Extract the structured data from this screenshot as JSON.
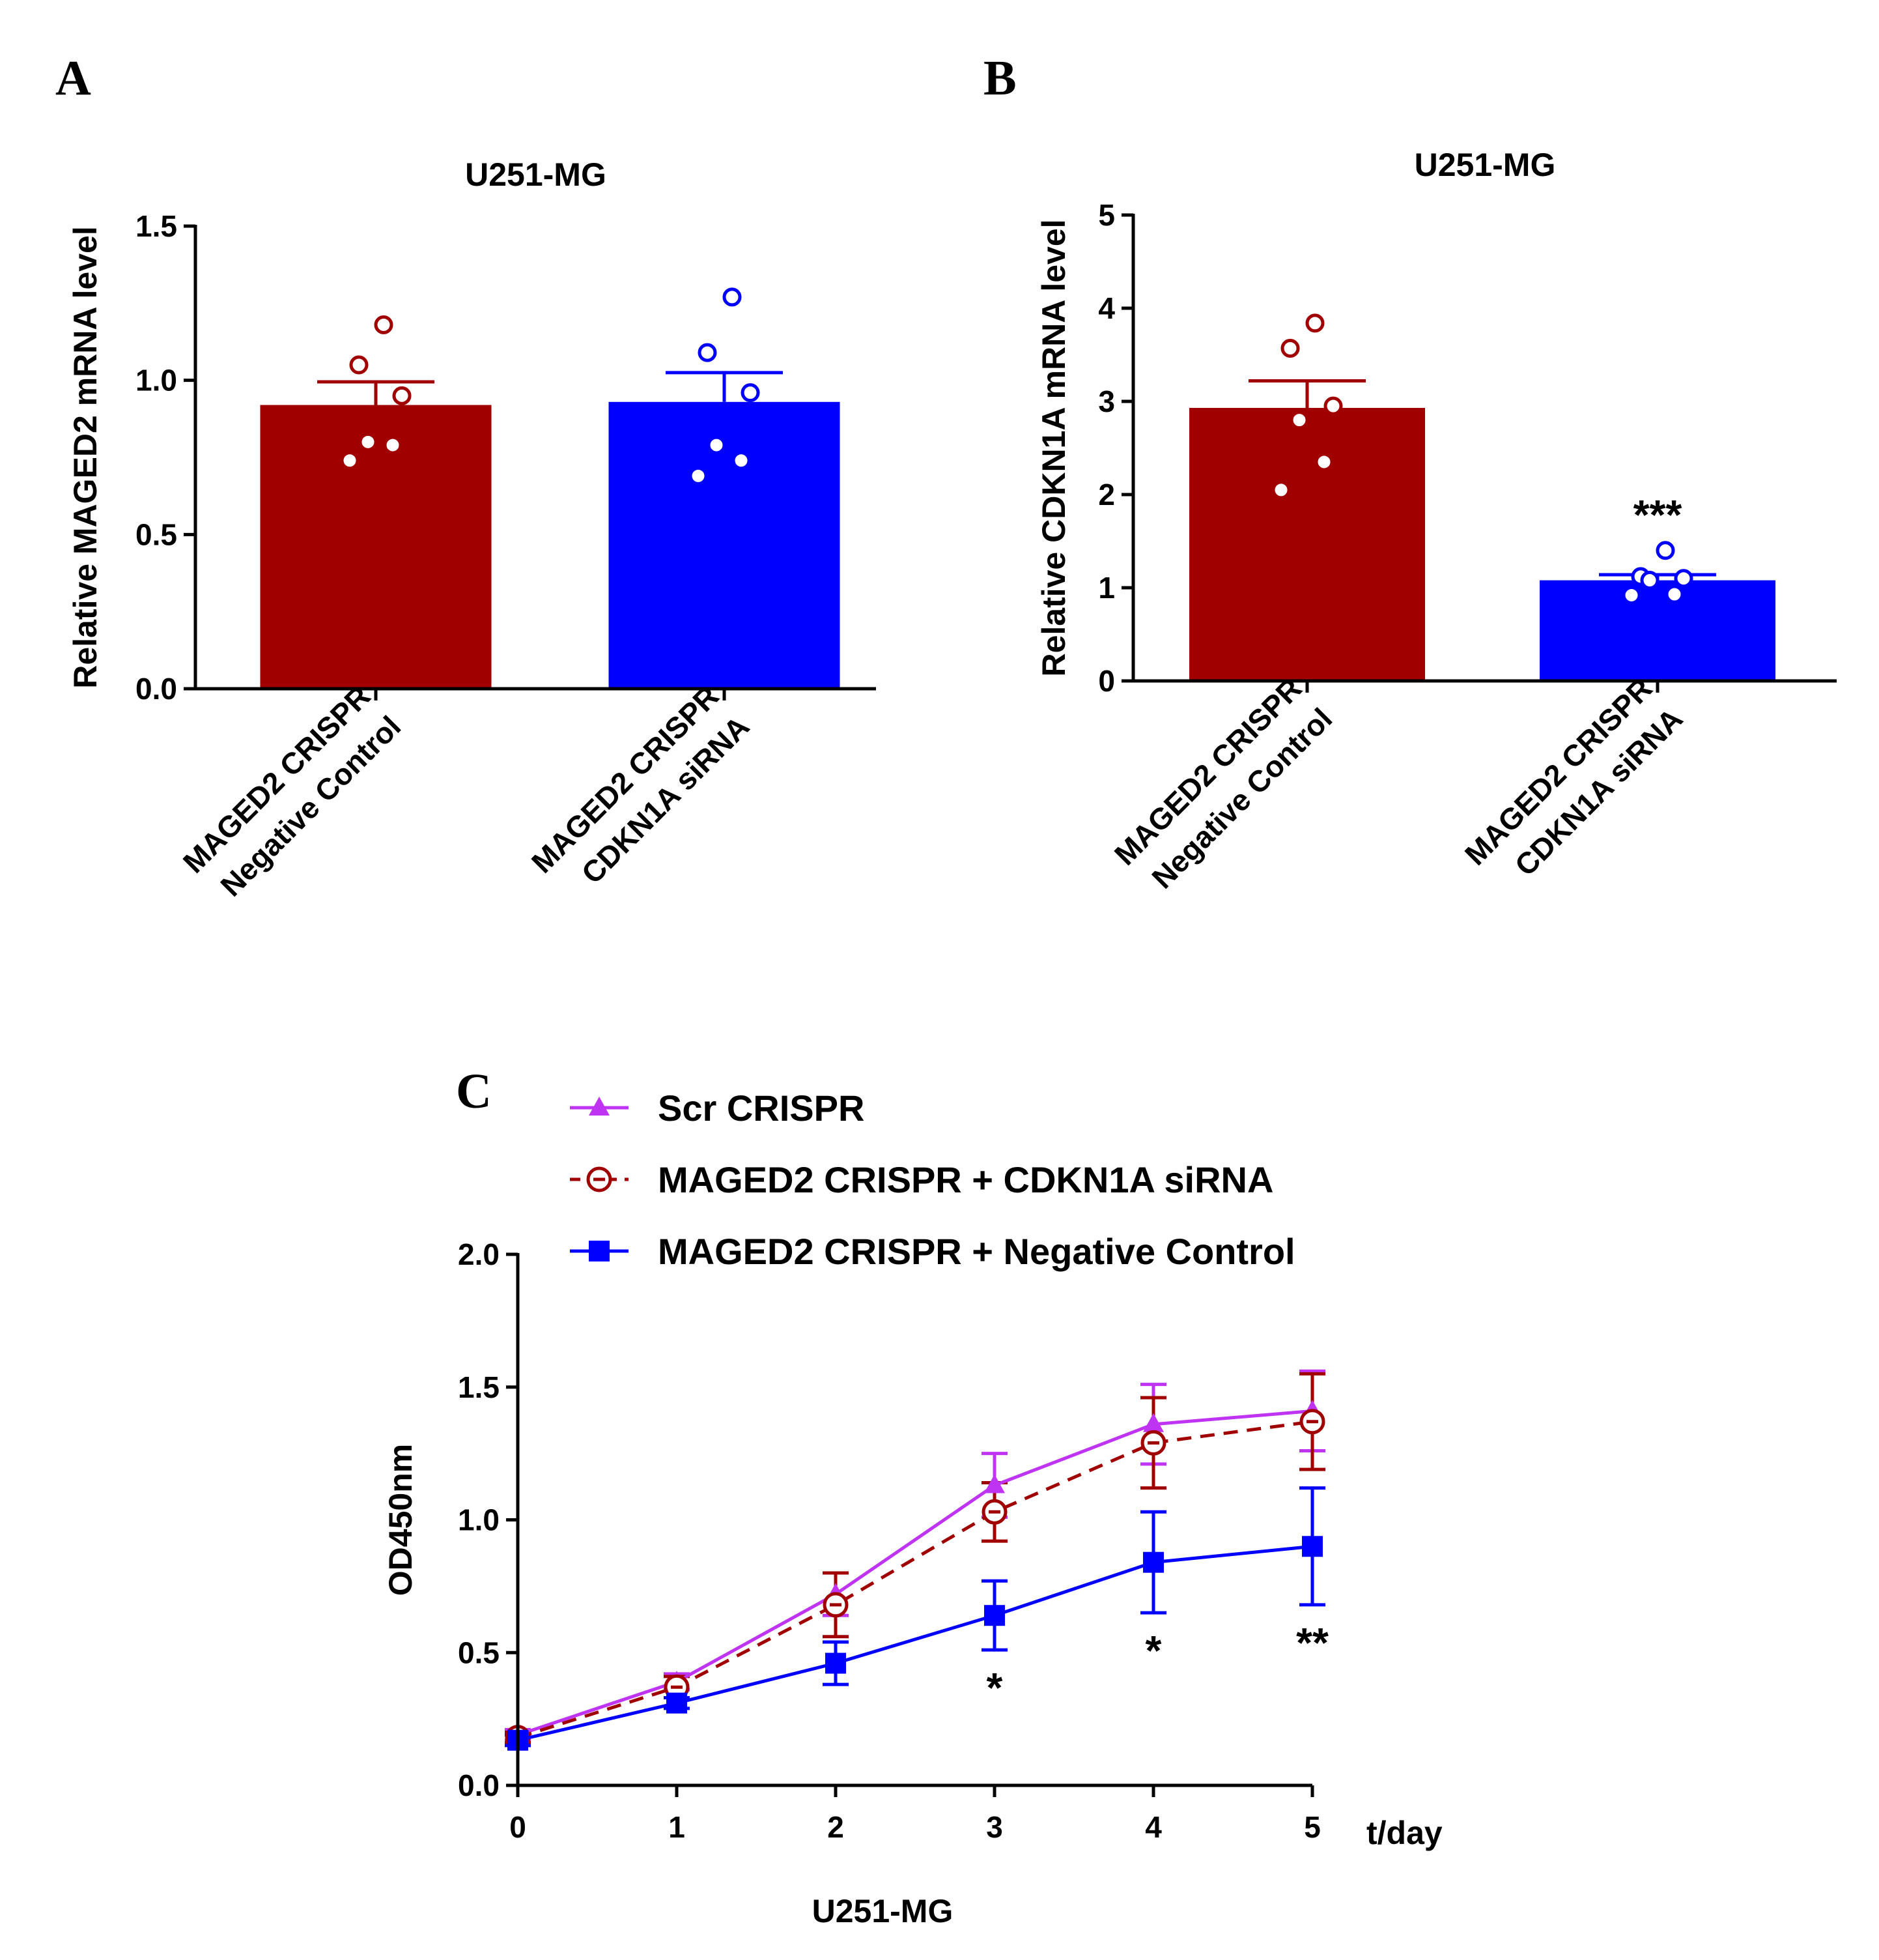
{
  "panels": {
    "A": "A",
    "B": "B",
    "C": "C"
  },
  "colors": {
    "dark_red": "#a00000",
    "blue": "#0000ff",
    "purple": "#bf34f2",
    "black": "#000000"
  },
  "chart_data": [
    {
      "panel": "A",
      "type": "bar",
      "title": "U251-MG",
      "ylabel": "Relative MAGED2 mRNA level",
      "xlabel": "",
      "ylim": [
        0,
        1.5
      ],
      "yticks": [
        "0.0",
        "0.5",
        "1.0",
        "1.5"
      ],
      "categories": [
        [
          "MAGED2 CRISPR",
          "Negative Control"
        ],
        [
          "MAGED2 CRISPR",
          "CDKN1A siRNA"
        ]
      ],
      "values": [
        0.92,
        0.93
      ],
      "sem": [
        0.075,
        0.095
      ],
      "points": [
        [
          1.18,
          1.05,
          0.95,
          0.8,
          0.79,
          0.74
        ],
        [
          1.27,
          1.09,
          0.96,
          0.79,
          0.74,
          0.69
        ]
      ],
      "colors": [
        "#a00000",
        "#0000ff"
      ],
      "significance": [
        "",
        ""
      ]
    },
    {
      "panel": "B",
      "type": "bar",
      "title": "U251-MG",
      "ylabel": "Relative CDKN1A mRNA level",
      "xlabel": "",
      "ylim": [
        0,
        5
      ],
      "yticks": [
        "0",
        "1",
        "2",
        "3",
        "4",
        "5"
      ],
      "categories": [
        [
          "MAGED2 CRISPR",
          "Negative Control"
        ],
        [
          "MAGED2 CRISPR",
          "CDKN1A siRNA"
        ]
      ],
      "values": [
        2.93,
        1.08
      ],
      "sem": [
        0.29,
        0.06
      ],
      "points": [
        [
          3.84,
          3.57,
          2.95,
          2.8,
          2.35,
          2.05
        ],
        [
          1.4,
          1.12,
          1.1,
          1.08,
          0.93,
          0.92
        ]
      ],
      "colors": [
        "#a00000",
        "#0000ff"
      ],
      "significance": [
        "",
        "***"
      ]
    },
    {
      "panel": "C",
      "type": "line",
      "title": "",
      "xlabel": "U251-MG",
      "x_unit_label": "t/day",
      "ylabel": "OD450nm",
      "xlim": [
        0,
        5
      ],
      "ylim": [
        0,
        2
      ],
      "x": [
        0,
        1,
        2,
        3,
        4,
        5
      ],
      "xticks": [
        "0",
        "1",
        "2",
        "3",
        "4",
        "5"
      ],
      "yticks": [
        "0.0",
        "0.5",
        "1.0",
        "1.5",
        "2.0"
      ],
      "legend": "top-left",
      "series": [
        {
          "name": "Scr CRISPR",
          "color": "#bf34f2",
          "marker": "triangle",
          "dash": "solid",
          "values": [
            0.19,
            0.39,
            0.72,
            1.13,
            1.36,
            1.41
          ],
          "err": [
            0.02,
            0.03,
            0.08,
            0.12,
            0.15,
            0.15
          ]
        },
        {
          "name": "MAGED2 CRISPR + CDKN1A siRNA",
          "color": "#a00000",
          "marker": "open-circle",
          "dash": "dashed",
          "values": [
            0.18,
            0.37,
            0.68,
            1.03,
            1.29,
            1.37
          ],
          "err": [
            0.02,
            0.04,
            0.12,
            0.11,
            0.17,
            0.18
          ]
        },
        {
          "name": "MAGED2 CRISPR + Negative Control",
          "color": "#0000ff",
          "marker": "square",
          "dash": "solid",
          "values": [
            0.17,
            0.31,
            0.46,
            0.64,
            0.84,
            0.9
          ],
          "err": [
            0.02,
            0.02,
            0.08,
            0.13,
            0.19,
            0.22
          ]
        }
      ],
      "annotations": [
        {
          "x": 3,
          "text": "*"
        },
        {
          "x": 4,
          "text": "*"
        },
        {
          "x": 5,
          "text": "**"
        }
      ]
    }
  ]
}
